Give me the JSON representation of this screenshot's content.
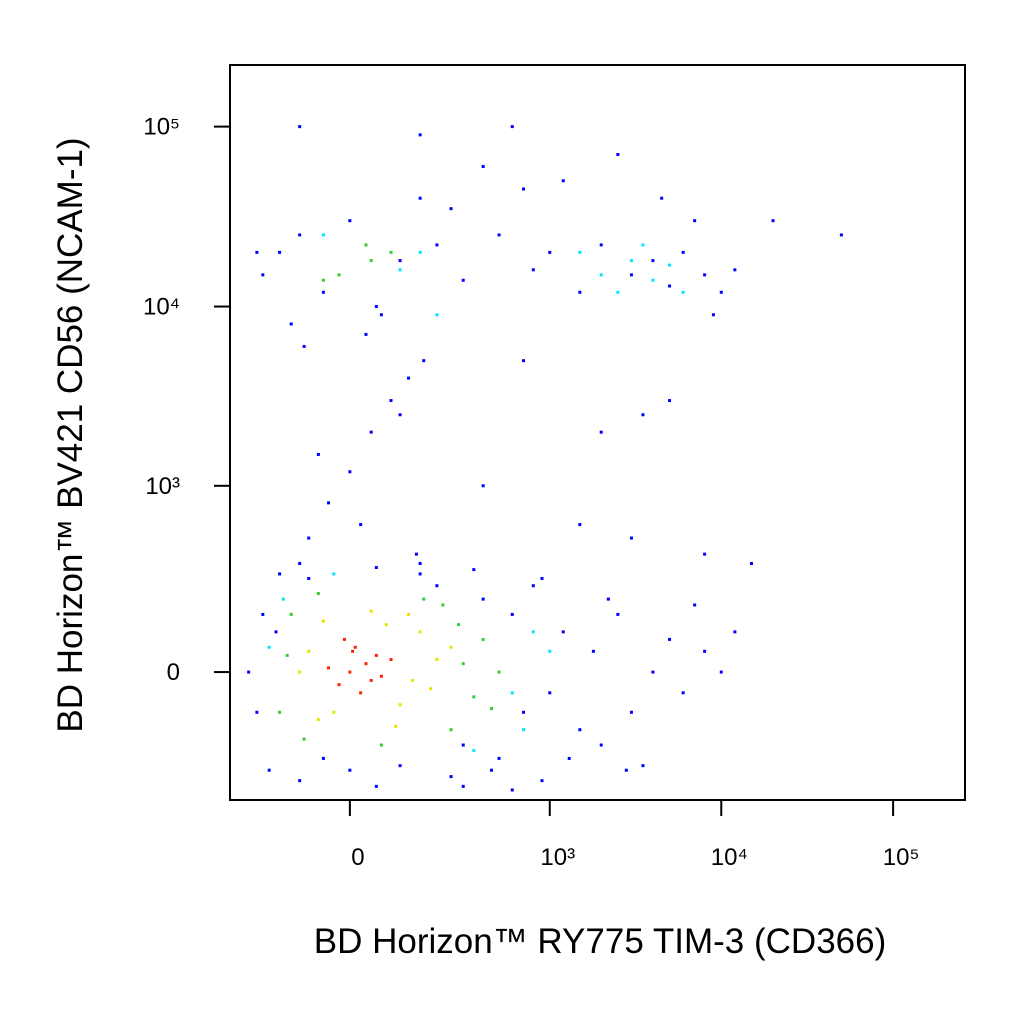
{
  "chart_data": {
    "type": "scatter",
    "scale": "biexponential",
    "xlabel": "BD Horizon™ RY775 TIM-3 (CD366)",
    "ylabel": "BD Horizon™ BV421 CD56 (NCAM-1)",
    "xlim": [
      -330,
      262000
    ],
    "ylim": [
      -460,
      220000
    ],
    "xticks": [
      0,
      {
        "value": 1000,
        "label": "10³"
      },
      {
        "value": 10000,
        "label": "10⁴"
      },
      {
        "value": 100000,
        "label": "10⁵"
      }
    ],
    "yticks": [
      0,
      {
        "value": 1000,
        "label": "10³"
      },
      {
        "value": 10000,
        "label": "10⁴"
      },
      {
        "value": 100000,
        "label": "10⁵"
      }
    ],
    "layers": [
      {
        "color": "#0000ff",
        "x": [
          -250,
          -220,
          -200,
          -180,
          -160,
          -100,
          -50,
          0,
          50,
          100,
          200,
          300,
          400,
          500,
          600,
          700,
          800,
          1000,
          1200,
          1500,
          1800,
          2000,
          2500,
          3000,
          4000,
          5000,
          6000,
          8000,
          10000,
          -150,
          -100,
          50,
          150,
          250,
          350,
          450,
          900,
          1300,
          2200,
          2800,
          3500,
          7000,
          12000,
          900,
          600,
          300,
          150,
          -80,
          -200,
          -150,
          -100,
          -50,
          0,
          50,
          100,
          200,
          300,
          500,
          800,
          1000,
          1500,
          2000,
          3000,
          4000,
          5000,
          6000,
          8000,
          10000,
          12000,
          -120,
          60,
          150,
          250,
          400,
          700,
          1200,
          2500,
          4500,
          7000,
          9000,
          -80,
          -40,
          0,
          40,
          80,
          120,
          160,
          -60,
          20,
          100,
          -90,
          30,
          140,
          2000,
          5000,
          20000,
          50000,
          -220,
          400,
          1500,
          3000,
          600,
          150,
          -100,
          8000,
          15000,
          700,
          3500
        ],
        "y": [
          0,
          -100,
          150,
          -300,
          100,
          -350,
          -250,
          -300,
          -380,
          -280,
          250,
          -200,
          200,
          -250,
          150,
          -100,
          250,
          -50,
          100,
          -150,
          50,
          -200,
          150,
          -100,
          0,
          80,
          -50,
          50,
          0,
          300,
          350,
          330,
          300,
          -330,
          320,
          -300,
          280,
          -250,
          200,
          -300,
          -280,
          180,
          100,
          -350,
          -400,
          -380,
          350,
          280,
          15000,
          20000,
          25000,
          12000,
          30000,
          10000,
          18000,
          22000,
          14000,
          25000,
          16000,
          20000,
          12000,
          22000,
          15000,
          18000,
          13000,
          20000,
          15000,
          12000,
          16000,
          8000,
          9000,
          40000,
          35000,
          60000,
          45000,
          50000,
          70000,
          40000,
          30000,
          9000,
          500,
          800,
          1200,
          2000,
          3000,
          4000,
          5000,
          1500,
          600,
          2500,
          6000,
          7000,
          400,
          2000,
          3000,
          30000,
          25000,
          20000,
          1000,
          600,
          500,
          100000,
          90000,
          100000,
          400,
          350,
          5000,
          2500
        ]
      },
      {
        "color": "#00e5ff",
        "x": [
          600,
          -180,
          800,
          350,
          -140,
          700,
          1000,
          2500,
          3000,
          -50,
          100,
          150,
          4000,
          5000,
          1500,
          2000,
          200,
          -30,
          3500,
          6000
        ],
        "y": [
          -50,
          60,
          100,
          -220,
          200,
          -150,
          50,
          12000,
          18000,
          25000,
          16000,
          20000,
          14000,
          17000,
          20000,
          15000,
          9000,
          300,
          22000,
          12000
        ]
      },
      {
        "color": "#33cc33",
        "x": [
          -150,
          300,
          -120,
          250,
          400,
          -90,
          350,
          160,
          -130,
          500,
          220,
          60,
          -60,
          280,
          450,
          -20,
          40,
          80,
          -50,
          30
        ],
        "y": [
          -100,
          20,
          150,
          -150,
          80,
          -180,
          -60,
          200,
          40,
          0,
          180,
          -200,
          220,
          120,
          -90,
          15000,
          18000,
          20000,
          14000,
          22000
        ]
      },
      {
        "color": "#e6e600",
        "x": [
          -80,
          100,
          150,
          -60,
          200,
          120,
          -30,
          70,
          180,
          -100,
          250,
          90,
          40,
          -50,
          130
        ],
        "y": [
          50,
          -80,
          100,
          -120,
          30,
          150,
          -100,
          120,
          -40,
          0,
          60,
          -140,
          160,
          130,
          -20
        ]
      },
      {
        "color": "#ff2200",
        "x": [
          0,
          30,
          -20,
          50,
          10,
          60,
          -40,
          20,
          80,
          -10,
          40,
          5
        ],
        "y": [
          0,
          20,
          -30,
          40,
          60,
          -10,
          10,
          -50,
          30,
          80,
          -20,
          50
        ]
      }
    ]
  }
}
